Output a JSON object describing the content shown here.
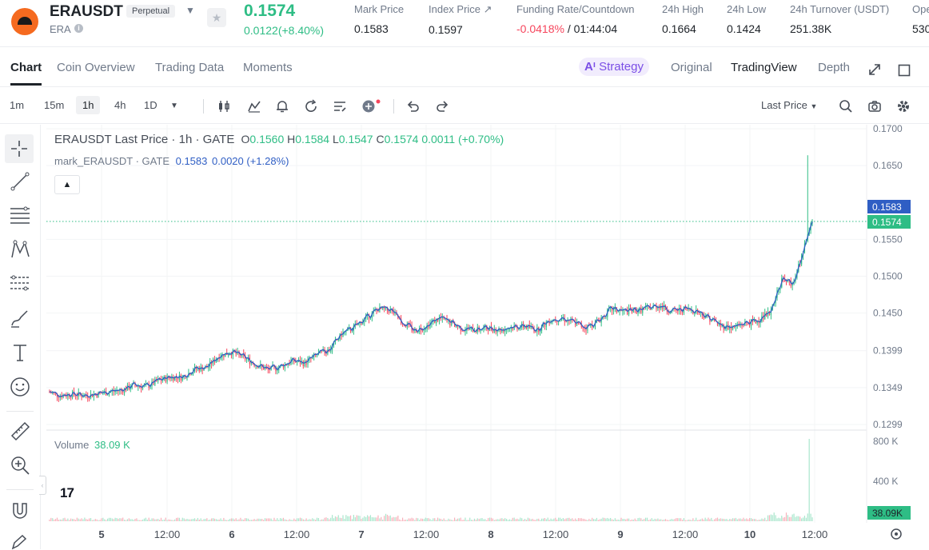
{
  "ticker": {
    "symbol": "ERAUSDT",
    "badge": "Perpetual",
    "base": "ERA",
    "last_price": "0.1574",
    "change": "0.0122(+8.40%)",
    "stats": [
      {
        "label": "Mark Price",
        "value": "0.1583"
      },
      {
        "label": "Index Price ↗",
        "value": "0.1597"
      },
      {
        "label": "Funding Rate/Countdown",
        "value": "-0.0418%",
        "value2": " / 01:44:04"
      },
      {
        "label": "24h High",
        "value": "0.1664"
      },
      {
        "label": "24h Low",
        "value": "0.1424"
      },
      {
        "label": "24h Turnover (USDT)",
        "value": "251.38K"
      },
      {
        "label": "Ope",
        "value": "530"
      }
    ]
  },
  "tabs": [
    "Chart",
    "Coin Overview",
    "Trading Data",
    "Moments"
  ],
  "right_tabs": {
    "strategy": "Strategy",
    "original": "Original",
    "tradingview": "TradingView",
    "depth": "Depth"
  },
  "timeframes": [
    "1m",
    "15m",
    "1h",
    "4h",
    "1D"
  ],
  "selected_timeframe": "1h",
  "price_source": "Last Price",
  "legend": {
    "title": "ERAUSDT Last Price · 1h · GATE",
    "o_label": "O",
    "o": "0.1560",
    "h_label": "H",
    "h": "0.1584",
    "l_label": "L",
    "l": "0.1547",
    "c_label": "C",
    "c": "0.1574",
    "change": "0.0011 (+0.70%)",
    "mark_name": "mark_ERAUSDT · GATE",
    "mark_value": "0.1583",
    "mark_change": "0.0020 (+1.28%)"
  },
  "volume_legend": {
    "label": "Volume",
    "value": "38.09 K"
  },
  "price_axis": [
    "0.1700",
    "0.1650",
    "0.1550",
    "0.1500",
    "0.1450",
    "0.1399",
    "0.1349",
    "0.1299"
  ],
  "price_tags": {
    "mark": "0.1583",
    "last": "0.1574"
  },
  "volume_axis": [
    "800 K",
    "400 K"
  ],
  "volume_tag": "38.09K",
  "time_axis": [
    "5",
    "12:00",
    "6",
    "12:00",
    "7",
    "12:00",
    "8",
    "12:00",
    "9",
    "12:00",
    "10",
    "12:00"
  ],
  "colors": {
    "up": "#2ebd85",
    "down": "#f6465d",
    "mark": "#2f5ec4",
    "accent": "#7b4fe6"
  },
  "chart_data": {
    "type": "candlestick",
    "interval": "1h",
    "ylim": [
      0.1299,
      0.17
    ],
    "close_path_points": [
      [
        0,
        0.1343
      ],
      [
        8,
        0.1338
      ],
      [
        16,
        0.134
      ],
      [
        24,
        0.1338
      ],
      [
        32,
        0.134
      ],
      [
        40,
        0.1343
      ],
      [
        48,
        0.1345
      ],
      [
        56,
        0.1352
      ],
      [
        64,
        0.135
      ],
      [
        72,
        0.1358
      ],
      [
        80,
        0.1363
      ],
      [
        88,
        0.1363
      ],
      [
        96,
        0.1374
      ],
      [
        104,
        0.1376
      ],
      [
        112,
        0.1392
      ],
      [
        120,
        0.1397
      ],
      [
        128,
        0.139
      ],
      [
        136,
        0.138
      ],
      [
        144,
        0.1373
      ],
      [
        152,
        0.1377
      ],
      [
        160,
        0.1385
      ],
      [
        168,
        0.1382
      ],
      [
        176,
        0.1393
      ],
      [
        184,
        0.14
      ],
      [
        192,
        0.1421
      ],
      [
        200,
        0.143
      ],
      [
        208,
        0.1443
      ],
      [
        216,
        0.1455
      ],
      [
        224,
        0.1454
      ],
      [
        232,
        0.1436
      ],
      [
        240,
        0.1426
      ],
      [
        248,
        0.1433
      ],
      [
        256,
        0.1443
      ],
      [
        264,
        0.1436
      ],
      [
        272,
        0.1428
      ],
      [
        280,
        0.1427
      ],
      [
        288,
        0.143
      ],
      [
        296,
        0.1427
      ],
      [
        304,
        0.1431
      ],
      [
        312,
        0.1432
      ],
      [
        320,
        0.1427
      ],
      [
        328,
        0.144
      ],
      [
        336,
        0.1443
      ],
      [
        344,
        0.1437
      ],
      [
        352,
        0.143
      ],
      [
        360,
        0.1439
      ],
      [
        368,
        0.1455
      ],
      [
        376,
        0.1452
      ],
      [
        384,
        0.1453
      ],
      [
        392,
        0.1456
      ],
      [
        400,
        0.146
      ],
      [
        408,
        0.1452
      ],
      [
        416,
        0.1455
      ],
      [
        424,
        0.1453
      ],
      [
        432,
        0.1444
      ],
      [
        440,
        0.1433
      ],
      [
        448,
        0.143
      ],
      [
        456,
        0.1436
      ],
      [
        464,
        0.1439
      ],
      [
        472,
        0.145
      ],
      [
        480,
        0.1495
      ],
      [
        488,
        0.149
      ],
      [
        496,
        0.155
      ],
      [
        500,
        0.1574
      ]
    ],
    "volume_scale_max_k": 800
  }
}
